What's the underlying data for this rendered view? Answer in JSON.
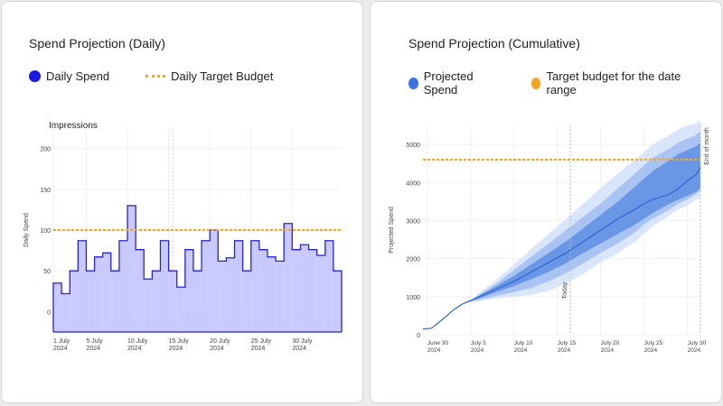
{
  "left": {
    "title": "Spend Projection (Daily)",
    "legend": [
      {
        "label": "Daily Spend",
        "color": "#1a1adf",
        "icon": "circle"
      },
      {
        "label": "Daily Target Budget",
        "color": "#f5a623",
        "icon": "dashed-line"
      }
    ]
  },
  "right": {
    "title": "Spend Projection (Cumulative)",
    "legend": [
      {
        "label": "Projected Spend",
        "color": "#3b6fe0",
        "icon": "circle"
      },
      {
        "label": "Target budget for the date range",
        "color": "#f5a623",
        "icon": "circle"
      }
    ]
  },
  "chart_data": [
    {
      "type": "bar",
      "title": "Spend Projection (Daily)",
      "subtitle": "Impressions",
      "xlabel": "",
      "ylabel": "Daily Spend",
      "ylim": [
        -25,
        225
      ],
      "yticks": [
        0,
        50,
        100,
        150,
        200
      ],
      "xticks": [
        {
          "day": 1,
          "label": "1 July",
          "sub": "2024"
        },
        {
          "day": 5,
          "label": "5 July",
          "sub": "2024"
        },
        {
          "day": 10,
          "label": "10 July",
          "sub": "2024"
        },
        {
          "day": 15,
          "label": "15 July",
          "sub": "2024"
        },
        {
          "day": 20,
          "label": "20 July",
          "sub": "2024"
        },
        {
          "day": 25,
          "label": "25 July",
          "sub": "2024"
        },
        {
          "day": 30,
          "label": "30 July",
          "sub": "2024"
        }
      ],
      "values": [
        35,
        22,
        50,
        87,
        50,
        67,
        72,
        50,
        87,
        130,
        76,
        40,
        50,
        87,
        50,
        30,
        76,
        50,
        87,
        100,
        62,
        66,
        87,
        50,
        87,
        76,
        67,
        62,
        108,
        76,
        82,
        76,
        69,
        87,
        50
      ],
      "series_name": "Daily Spend",
      "target": 100,
      "target_name": "Daily Target Budget",
      "grid": true,
      "legend": "top-left"
    },
    {
      "type": "area",
      "title": "Spend Projection (Cumulative)",
      "xlabel": "",
      "ylabel": "Projected Spend",
      "ylim": [
        0,
        5500
      ],
      "yticks": [
        0,
        1000,
        2000,
        3000,
        4000,
        5000
      ],
      "xlim": [
        -0.5,
        31.5
      ],
      "xticks": [
        {
          "day": 0,
          "label": "June 30",
          "sub": "2024"
        },
        {
          "day": 5,
          "label": "July 5",
          "sub": "2024"
        },
        {
          "day": 10,
          "label": "July 10",
          "sub": "2024"
        },
        {
          "day": 15,
          "label": "July 15",
          "sub": "2024"
        },
        {
          "day": 20,
          "label": "July 20",
          "sub": "2024"
        },
        {
          "day": 25,
          "label": "July 25",
          "sub": "2024"
        },
        {
          "day": 30,
          "label": "July 30",
          "sub": "2024"
        }
      ],
      "series": [
        {
          "name": "Projected Spend",
          "x": [
            -0.5,
            0.5,
            2,
            3,
            4,
            5,
            6,
            8,
            10,
            12,
            14,
            16,
            18,
            20,
            22,
            24,
            25,
            26,
            28,
            29,
            30,
            31,
            31.5
          ],
          "values": [
            150,
            170,
            450,
            650,
            800,
            900,
            1000,
            1200,
            1400,
            1650,
            1900,
            2150,
            2450,
            2750,
            3050,
            3300,
            3450,
            3550,
            3700,
            3850,
            4050,
            4200,
            4400
          ]
        }
      ],
      "bands": [
        {
          "level": "outer",
          "upper": [
            150,
            170,
            450,
            650,
            800,
            900,
            1100,
            1450,
            1850,
            2250,
            2650,
            3050,
            3450,
            3850,
            4250,
            4600,
            4800,
            5000,
            5250,
            5400,
            5500,
            5550,
            5650
          ],
          "lower": [
            150,
            170,
            450,
            650,
            800,
            860,
            880,
            950,
            1000,
            1050,
            1150,
            1350,
            1600,
            1900,
            2150,
            2450,
            2650,
            2850,
            3150,
            3300,
            3400,
            3550,
            3600
          ]
        },
        {
          "level": "middle",
          "upper": [
            150,
            170,
            450,
            650,
            800,
            900,
            1050,
            1350,
            1700,
            2050,
            2400,
            2750,
            3100,
            3450,
            3850,
            4250,
            4450,
            4650,
            4900,
            5050,
            5150,
            5250,
            5350
          ],
          "lower": [
            150,
            170,
            450,
            650,
            800,
            870,
            920,
            1020,
            1120,
            1230,
            1400,
            1620,
            1880,
            2150,
            2400,
            2700,
            2900,
            3050,
            3300,
            3450,
            3550,
            3700,
            3800
          ]
        },
        {
          "level": "inner",
          "upper": [
            150,
            170,
            450,
            650,
            800,
            900,
            1030,
            1280,
            1550,
            1850,
            2150,
            2450,
            2800,
            3150,
            3500,
            3900,
            4100,
            4300,
            4600,
            4750,
            4850,
            4950,
            5050
          ],
          "lower": [
            150,
            170,
            450,
            650,
            800,
            880,
            960,
            1120,
            1280,
            1460,
            1650,
            1880,
            2150,
            2400,
            2650,
            2900,
            3050,
            3200,
            3450,
            3550,
            3650,
            3750,
            3850
          ]
        }
      ],
      "target": 4600,
      "target_name": "Target budget for the date range",
      "today": {
        "day": 16.5,
        "label": "Today"
      },
      "end_of_month": {
        "day": 31.5,
        "label": "End of month"
      },
      "grid": true,
      "legend": "top-left"
    }
  ]
}
